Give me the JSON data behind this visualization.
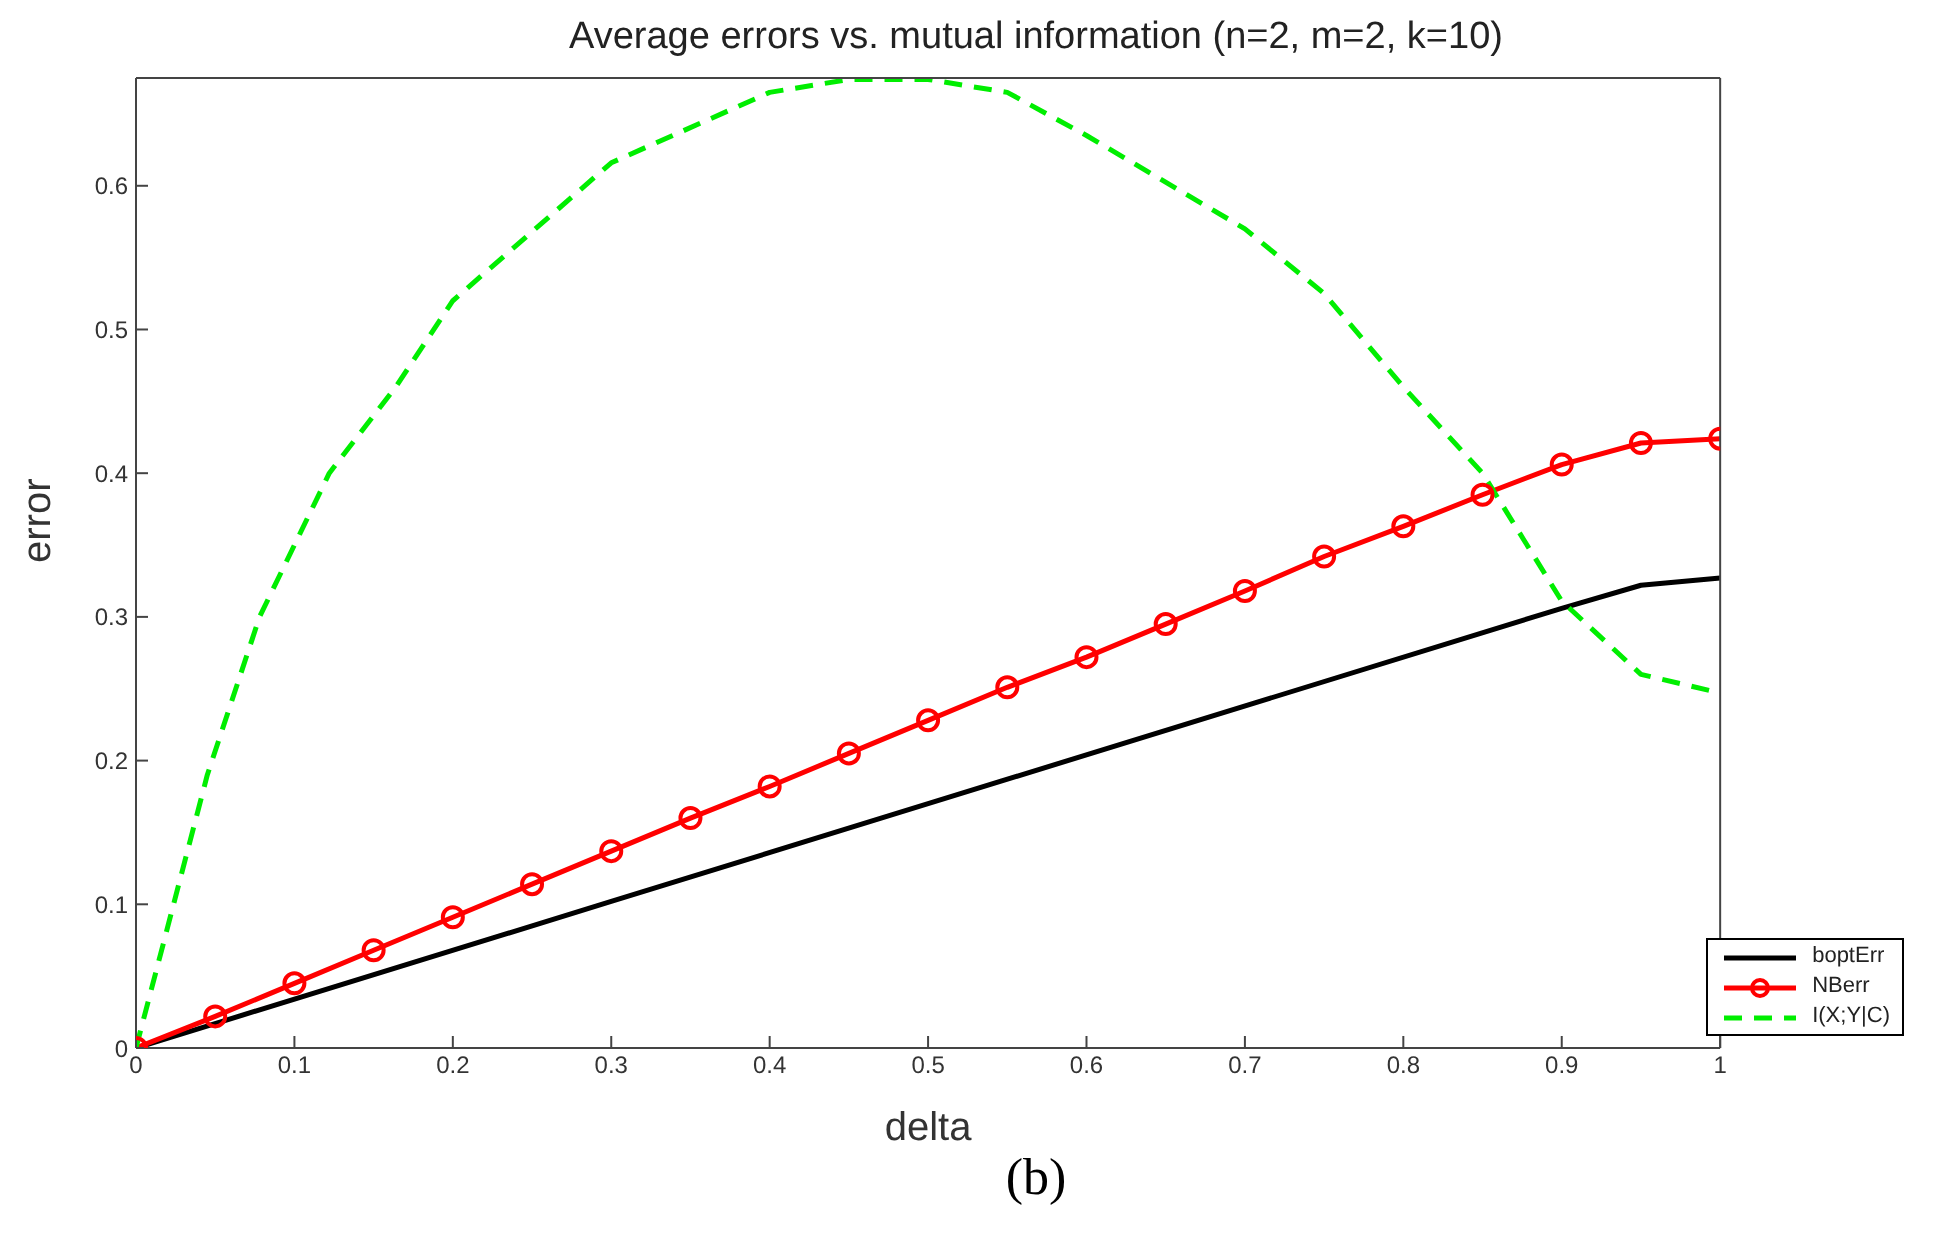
{
  "chart_data": {
    "type": "line",
    "title": "Average errors vs. mutual information  (n=2, m=2, k=10)",
    "xlabel": "delta",
    "ylabel": "error",
    "annotations": [
      "(b)"
    ],
    "xlim": [
      0,
      1
    ],
    "ylim": [
      0,
      0.675
    ],
    "xticks": [
      0,
      0.1,
      0.2,
      0.3,
      0.4,
      0.5,
      0.6,
      0.7,
      0.8,
      0.9,
      1
    ],
    "yticks": [
      0,
      0.1,
      0.2,
      0.3,
      0.4,
      0.5,
      0.6
    ],
    "legend": "bottom right",
    "series": [
      {
        "name": "boptErr",
        "color": "#000000",
        "marker": "none",
        "line_style": "solid",
        "x": [
          0,
          0.3,
          0.5,
          0.9,
          0.95,
          1
        ],
        "values": [
          0,
          0.102,
          0.17,
          0.306,
          0.322,
          0.327
        ]
      },
      {
        "name": "NBerr",
        "color": "#ff0000",
        "marker": "circle",
        "line_style": "solid",
        "x": [
          0,
          0.05,
          0.1,
          0.15,
          0.2,
          0.25,
          0.3,
          0.35,
          0.4,
          0.45,
          0.5,
          0.55,
          0.6,
          0.65,
          0.7,
          0.75,
          0.8,
          0.85,
          0.9,
          0.95,
          1
        ],
        "values": [
          0,
          0.022,
          0.045,
          0.068,
          0.091,
          0.114,
          0.137,
          0.16,
          0.182,
          0.205,
          0.228,
          0.251,
          0.272,
          0.295,
          0.318,
          0.342,
          0.363,
          0.385,
          0.406,
          0.421,
          0.424
        ]
      },
      {
        "name": "I(X;Y|C)",
        "color": "#00ee00",
        "marker": "none",
        "line_style": "dashed",
        "x": [
          0,
          0.019,
          0.045,
          0.078,
          0.122,
          0.164,
          0.2,
          0.3,
          0.4,
          0.45,
          0.5,
          0.55,
          0.6,
          0.7,
          0.75,
          0.8,
          0.85,
          0.9,
          0.95,
          1
        ],
        "values": [
          0,
          0.08,
          0.19,
          0.3,
          0.4,
          0.46,
          0.52,
          0.616,
          0.665,
          0.674,
          0.674,
          0.665,
          0.635,
          0.57,
          0.525,
          0.46,
          0.4,
          0.311,
          0.26,
          0.247
        ]
      }
    ]
  }
}
